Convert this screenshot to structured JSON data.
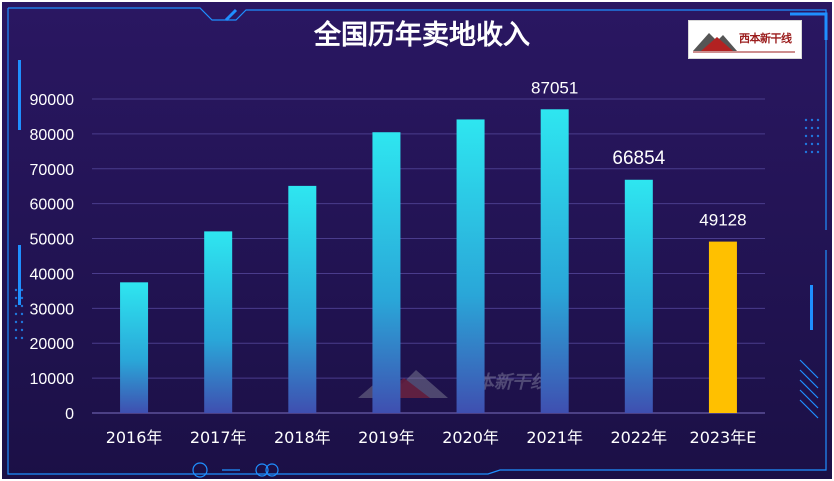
{
  "chart_data": {
    "type": "bar",
    "title": "全国历年卖地收入",
    "categories": [
      "2016年",
      "2017年",
      "2018年",
      "2019年",
      "2020年",
      "2021年",
      "2022年",
      "2023年E"
    ],
    "values": [
      37456,
      52059,
      65096,
      80476,
      84142,
      87051,
      66854,
      49128
    ],
    "data_labels": [
      "",
      "",
      "",
      "",
      "",
      "87051",
      "66854",
      "49128"
    ],
    "ylim": [
      0,
      90000
    ],
    "yticks": [
      0,
      10000,
      20000,
      30000,
      40000,
      50000,
      60000,
      70000,
      80000,
      90000
    ],
    "xlabel": "",
    "ylabel": "",
    "grid": true,
    "colors": {
      "bar_top": "#2ee6f0",
      "bar_bottom": "#3f4fb0",
      "highlight": "#ffc000",
      "background_top": "#2a1762",
      "background_bottom": "#1a0f45",
      "frame": "#1f8fff"
    }
  },
  "logo": {
    "text": "西本新干线",
    "icon": "mountain-logo-icon"
  },
  "watermark": {
    "text": "西本新干线",
    "icon": "mountain-watermark-icon"
  }
}
